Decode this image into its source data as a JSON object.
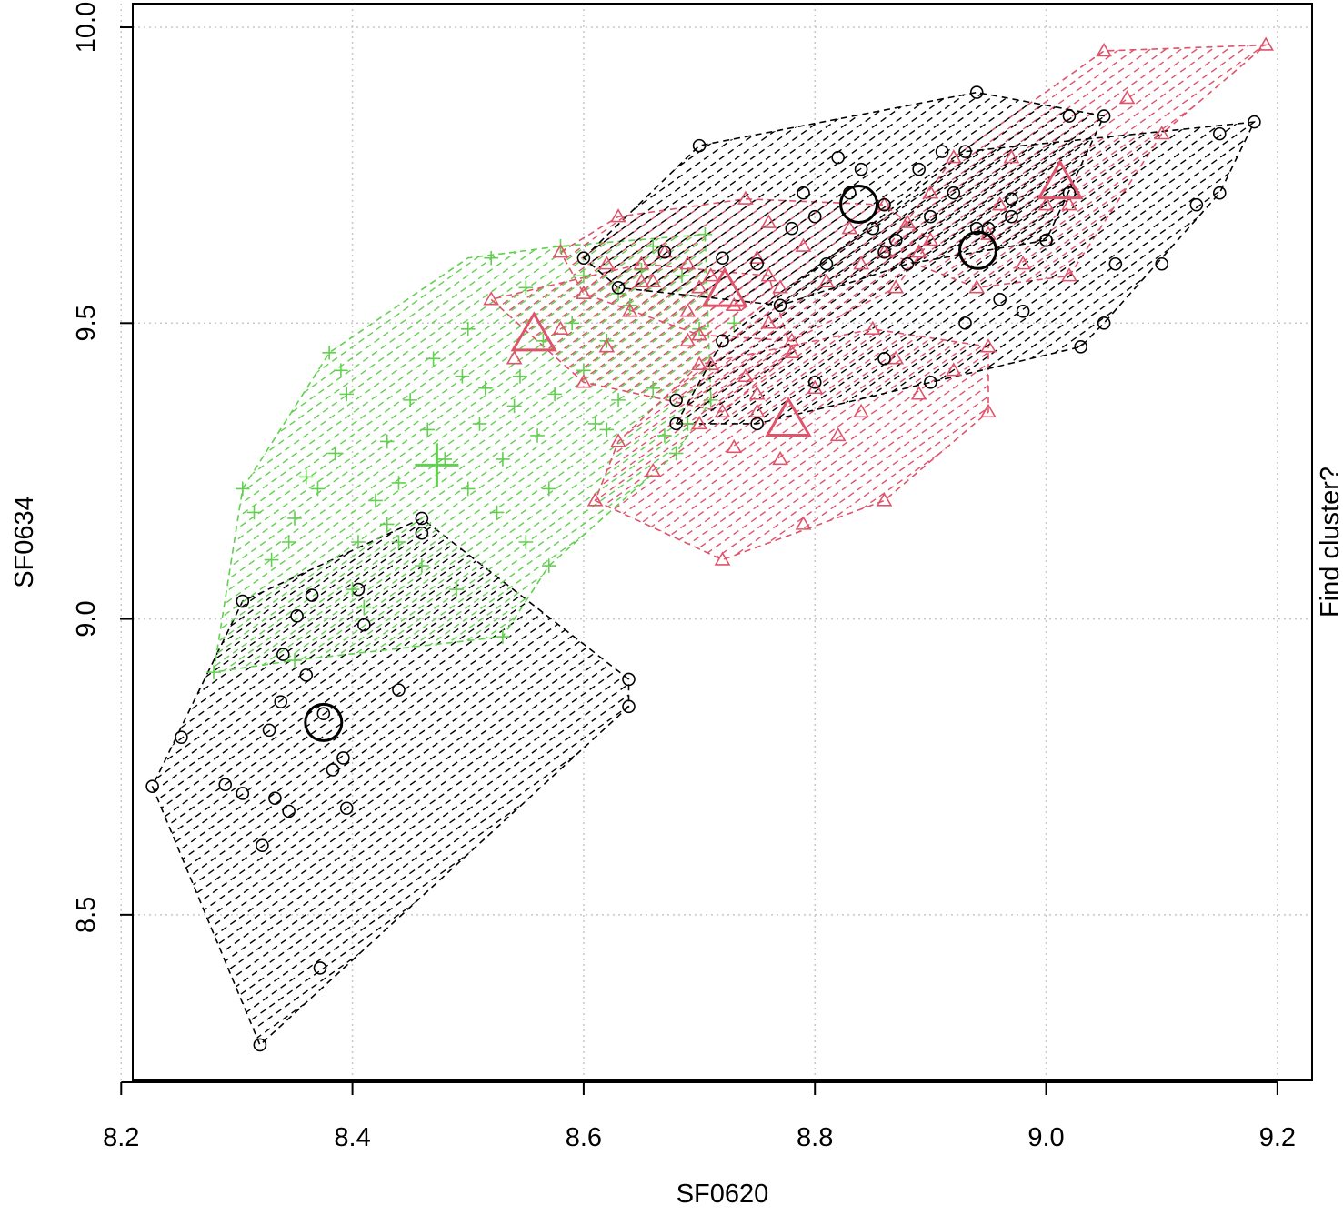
{
  "chart_data": {
    "type": "scatter",
    "title": "",
    "xlabel": "SF0620",
    "ylabel": "SF0634",
    "right_label": "Find cluster?",
    "xlim": [
      8.21,
      9.23
    ],
    "ylim": [
      8.22,
      10.04
    ],
    "x_ticks": [
      "8.2",
      "8.4",
      "8.6",
      "8.8",
      "9.0",
      "9.2"
    ],
    "y_ticks": [
      "8.5",
      "9.0",
      "9.5",
      "10.0"
    ],
    "grid": true,
    "legend": "none",
    "colors": {
      "black": "#000000",
      "pink": "#DF536B",
      "green": "#61D04F",
      "grid": "#c8c8c8"
    },
    "clusters": [
      {
        "color": "black",
        "marker": "circle",
        "center": [
          8.375,
          8.825
        ],
        "hull": [
          [
            8.227,
            8.717
          ],
          [
            8.32,
            8.28
          ],
          [
            8.639,
            8.852
          ],
          [
            8.639,
            8.898
          ],
          [
            8.46,
            9.17
          ],
          [
            8.305,
            9.03
          ],
          [
            8.227,
            8.717
          ]
        ],
        "points": [
          [
            8.227,
            8.717
          ],
          [
            8.252,
            8.8
          ],
          [
            8.29,
            8.72
          ],
          [
            8.305,
            8.705
          ],
          [
            8.322,
            8.617
          ],
          [
            8.32,
            8.28
          ],
          [
            8.328,
            8.812
          ],
          [
            8.333,
            8.697
          ],
          [
            8.338,
            8.86
          ],
          [
            8.345,
            8.675
          ],
          [
            8.352,
            9.005
          ],
          [
            8.36,
            8.905
          ],
          [
            8.365,
            9.04
          ],
          [
            8.372,
            8.41
          ],
          [
            8.383,
            8.745
          ],
          [
            8.392,
            8.765
          ],
          [
            8.395,
            8.68
          ],
          [
            8.405,
            9.05
          ],
          [
            8.41,
            8.99
          ],
          [
            8.44,
            8.88
          ],
          [
            8.46,
            9.145
          ],
          [
            8.46,
            9.17
          ],
          [
            8.639,
            8.852
          ],
          [
            8.639,
            8.898
          ],
          [
            8.34,
            8.94
          ],
          [
            8.305,
            9.03
          ],
          [
            8.375,
            8.84
          ]
        ]
      },
      {
        "color": "green",
        "marker": "plus",
        "center": [
          8.473,
          9.26
        ],
        "hull": [
          [
            8.28,
            8.91
          ],
          [
            8.305,
            9.22
          ],
          [
            8.38,
            9.45
          ],
          [
            8.5,
            9.61
          ],
          [
            8.58,
            9.63
          ],
          [
            8.705,
            9.65
          ],
          [
            8.71,
            9.37
          ],
          [
            8.68,
            9.28
          ],
          [
            8.57,
            9.09
          ],
          [
            8.53,
            8.97
          ],
          [
            8.35,
            8.93
          ],
          [
            8.28,
            8.91
          ]
        ],
        "points": [
          [
            8.28,
            8.91
          ],
          [
            8.305,
            9.22
          ],
          [
            8.315,
            9.18
          ],
          [
            8.33,
            9.1
          ],
          [
            8.345,
            9.13
          ],
          [
            8.35,
            9.17
          ],
          [
            8.36,
            9.24
          ],
          [
            8.37,
            9.22
          ],
          [
            8.38,
            9.45
          ],
          [
            8.385,
            9.28
          ],
          [
            8.39,
            9.42
          ],
          [
            8.395,
            9.38
          ],
          [
            8.4,
            9.05
          ],
          [
            8.405,
            9.13
          ],
          [
            8.41,
            9.02
          ],
          [
            8.42,
            9.2
          ],
          [
            8.43,
            9.16
          ],
          [
            8.43,
            9.3
          ],
          [
            8.44,
            9.23
          ],
          [
            8.45,
            9.37
          ],
          [
            8.46,
            9.09
          ],
          [
            8.465,
            9.32
          ],
          [
            8.47,
            9.44
          ],
          [
            8.48,
            9.27
          ],
          [
            8.49,
            9.05
          ],
          [
            8.495,
            9.41
          ],
          [
            8.5,
            9.22
          ],
          [
            8.51,
            9.33
          ],
          [
            8.515,
            9.39
          ],
          [
            8.52,
            9.61
          ],
          [
            8.525,
            9.18
          ],
          [
            8.53,
            9.27
          ],
          [
            8.54,
            9.36
          ],
          [
            8.545,
            9.41
          ],
          [
            8.55,
            9.13
          ],
          [
            8.56,
            9.31
          ],
          [
            8.565,
            9.47
          ],
          [
            8.57,
            9.22
          ],
          [
            8.575,
            9.38
          ],
          [
            8.58,
            9.63
          ],
          [
            8.59,
            9.5
          ],
          [
            8.6,
            9.42
          ],
          [
            8.61,
            9.33
          ],
          [
            8.62,
            9.47
          ],
          [
            8.63,
            9.37
          ],
          [
            8.64,
            9.53
          ],
          [
            8.65,
            9.59
          ],
          [
            8.66,
            9.39
          ],
          [
            8.67,
            9.31
          ],
          [
            8.68,
            9.28
          ],
          [
            8.69,
            9.33
          ],
          [
            8.7,
            9.49
          ],
          [
            8.705,
            9.65
          ],
          [
            8.71,
            9.37
          ],
          [
            8.57,
            9.09
          ],
          [
            8.53,
            8.97
          ],
          [
            8.35,
            8.93
          ],
          [
            8.44,
            9.13
          ],
          [
            8.5,
            9.49
          ],
          [
            8.55,
            9.56
          ],
          [
            8.6,
            9.58
          ],
          [
            8.62,
            9.32
          ],
          [
            8.63,
            9.55
          ],
          [
            8.66,
            9.63
          ],
          [
            8.685,
            9.58
          ],
          [
            8.73,
            9.5
          ]
        ]
      },
      {
        "color": "pink",
        "marker": "triangle",
        "center": [
          8.557,
          9.48
        ],
        "hull": [
          [
            8.52,
            9.54
          ],
          [
            8.6,
            9.4
          ],
          [
            8.72,
            9.35
          ],
          [
            8.78,
            9.45
          ],
          [
            8.76,
            9.58
          ],
          [
            8.65,
            9.6
          ],
          [
            8.52,
            9.54
          ]
        ],
        "points": [
          [
            8.52,
            9.54
          ],
          [
            8.54,
            9.44
          ],
          [
            8.58,
            9.49
          ],
          [
            8.6,
            9.4
          ],
          [
            8.62,
            9.46
          ],
          [
            8.64,
            9.52
          ],
          [
            8.66,
            9.57
          ],
          [
            8.69,
            9.47
          ],
          [
            8.71,
            9.43
          ],
          [
            8.72,
            9.35
          ],
          [
            8.74,
            9.41
          ],
          [
            8.76,
            9.5
          ],
          [
            8.78,
            9.45
          ],
          [
            8.76,
            9.58
          ],
          [
            8.7,
            9.56
          ],
          [
            8.65,
            9.6
          ]
        ]
      },
      {
        "color": "pink",
        "marker": "triangle",
        "center": [
          8.777,
          9.336
        ],
        "hull": [
          [
            8.61,
            9.2
          ],
          [
            8.72,
            9.1
          ],
          [
            8.86,
            9.2
          ],
          [
            8.95,
            9.35
          ],
          [
            8.95,
            9.46
          ],
          [
            8.85,
            9.49
          ],
          [
            8.7,
            9.43
          ],
          [
            8.63,
            9.3
          ],
          [
            8.61,
            9.2
          ]
        ],
        "points": [
          [
            8.61,
            9.2
          ],
          [
            8.63,
            9.3
          ],
          [
            8.66,
            9.25
          ],
          [
            8.7,
            9.33
          ],
          [
            8.7,
            9.43
          ],
          [
            8.72,
            9.1
          ],
          [
            8.73,
            9.29
          ],
          [
            8.75,
            9.38
          ],
          [
            8.77,
            9.27
          ],
          [
            8.79,
            9.16
          ],
          [
            8.8,
            9.39
          ],
          [
            8.82,
            9.31
          ],
          [
            8.84,
            9.35
          ],
          [
            8.86,
            9.2
          ],
          [
            8.87,
            9.44
          ],
          [
            8.89,
            9.38
          ],
          [
            8.92,
            9.42
          ],
          [
            8.95,
            9.35
          ],
          [
            8.95,
            9.46
          ],
          [
            8.85,
            9.49
          ],
          [
            8.75,
            9.35
          ]
        ]
      },
      {
        "color": "pink",
        "marker": "triangle",
        "center": [
          8.722,
          9.555
        ],
        "hull": [
          [
            8.58,
            9.62
          ],
          [
            8.63,
            9.68
          ],
          [
            8.74,
            9.71
          ],
          [
            8.86,
            9.7
          ],
          [
            8.9,
            9.64
          ],
          [
            8.87,
            9.56
          ],
          [
            8.78,
            9.47
          ],
          [
            8.7,
            9.48
          ],
          [
            8.6,
            9.55
          ],
          [
            8.58,
            9.62
          ]
        ],
        "points": [
          [
            8.58,
            9.62
          ],
          [
            8.6,
            9.55
          ],
          [
            8.62,
            9.6
          ],
          [
            8.63,
            9.68
          ],
          [
            8.65,
            9.57
          ],
          [
            8.67,
            9.62
          ],
          [
            8.69,
            9.52
          ],
          [
            8.7,
            9.48
          ],
          [
            8.71,
            9.58
          ],
          [
            8.73,
            9.53
          ],
          [
            8.74,
            9.71
          ],
          [
            8.75,
            9.61
          ],
          [
            8.77,
            9.56
          ],
          [
            8.78,
            9.47
          ],
          [
            8.79,
            9.63
          ],
          [
            8.81,
            9.57
          ],
          [
            8.83,
            9.66
          ],
          [
            8.84,
            9.6
          ],
          [
            8.86,
            9.7
          ],
          [
            8.87,
            9.56
          ],
          [
            8.89,
            9.62
          ],
          [
            8.9,
            9.64
          ],
          [
            8.76,
            9.67
          ],
          [
            8.69,
            9.6
          ]
        ]
      },
      {
        "color": "pink",
        "marker": "triangle",
        "center": [
          9.012,
          9.737
        ],
        "hull": [
          [
            8.86,
            9.62
          ],
          [
            8.92,
            9.78
          ],
          [
            9.05,
            9.96
          ],
          [
            9.19,
            9.97
          ],
          [
            9.1,
            9.82
          ],
          [
            9.02,
            9.58
          ],
          [
            8.94,
            9.56
          ],
          [
            8.86,
            9.62
          ]
        ],
        "points": [
          [
            8.86,
            9.62
          ],
          [
            8.88,
            9.67
          ],
          [
            8.9,
            9.72
          ],
          [
            8.92,
            9.78
          ],
          [
            8.94,
            9.56
          ],
          [
            8.95,
            9.65
          ],
          [
            8.97,
            9.78
          ],
          [
            8.98,
            9.6
          ],
          [
            9.0,
            9.7
          ],
          [
            9.02,
            9.58
          ],
          [
            9.02,
            9.7
          ],
          [
            9.05,
            9.96
          ],
          [
            9.07,
            9.88
          ],
          [
            9.1,
            9.82
          ],
          [
            9.19,
            9.97
          ],
          [
            8.96,
            9.7
          ]
        ]
      },
      {
        "color": "black",
        "marker": "circle",
        "center": [
          8.838,
          9.701
        ],
        "hull": [
          [
            8.6,
            9.61
          ],
          [
            8.7,
            9.8
          ],
          [
            8.94,
            9.89
          ],
          [
            9.05,
            9.85
          ],
          [
            9.0,
            9.64
          ],
          [
            8.88,
            9.6
          ],
          [
            8.77,
            9.53
          ],
          [
            8.63,
            9.56
          ],
          [
            8.6,
            9.61
          ]
        ],
        "points": [
          [
            8.6,
            9.61
          ],
          [
            8.63,
            9.56
          ],
          [
            8.67,
            9.62
          ],
          [
            8.7,
            9.8
          ],
          [
            8.72,
            9.61
          ],
          [
            8.75,
            9.6
          ],
          [
            8.77,
            9.53
          ],
          [
            8.78,
            9.66
          ],
          [
            8.79,
            9.72
          ],
          [
            8.81,
            9.6
          ],
          [
            8.82,
            9.78
          ],
          [
            8.83,
            9.72
          ],
          [
            8.84,
            9.76
          ],
          [
            8.85,
            9.66
          ],
          [
            8.86,
            9.7
          ],
          [
            8.87,
            9.64
          ],
          [
            8.88,
            9.6
          ],
          [
            8.89,
            9.76
          ],
          [
            8.9,
            9.68
          ],
          [
            8.91,
            9.79
          ],
          [
            8.92,
            9.72
          ],
          [
            8.94,
            9.89
          ],
          [
            8.95,
            9.66
          ],
          [
            8.97,
            9.71
          ],
          [
            9.0,
            9.64
          ],
          [
            9.02,
            9.85
          ],
          [
            9.05,
            9.85
          ],
          [
            8.8,
            9.68
          ],
          [
            8.86,
            9.62
          ]
        ]
      },
      {
        "color": "black",
        "marker": "circle",
        "center": [
          8.941,
          9.623
        ],
        "hull": [
          [
            8.68,
            9.33
          ],
          [
            8.72,
            9.47
          ],
          [
            8.93,
            9.79
          ],
          [
            9.18,
            9.84
          ],
          [
            9.15,
            9.72
          ],
          [
            9.05,
            9.5
          ],
          [
            9.03,
            9.46
          ],
          [
            8.9,
            9.4
          ],
          [
            8.75,
            9.33
          ],
          [
            8.68,
            9.33
          ]
        ],
        "points": [
          [
            8.68,
            9.33
          ],
          [
            8.68,
            9.37
          ],
          [
            8.72,
            9.47
          ],
          [
            8.75,
            9.33
          ],
          [
            8.8,
            9.4
          ],
          [
            8.86,
            9.44
          ],
          [
            8.9,
            9.4
          ],
          [
            8.93,
            9.5
          ],
          [
            8.93,
            9.79
          ],
          [
            8.94,
            9.66
          ],
          [
            8.96,
            9.54
          ],
          [
            8.98,
            9.52
          ],
          [
            9.0,
            9.64
          ],
          [
            9.03,
            9.46
          ],
          [
            9.05,
            9.5
          ],
          [
            9.06,
            9.6
          ],
          [
            9.1,
            9.6
          ],
          [
            9.13,
            9.7
          ],
          [
            9.15,
            9.72
          ],
          [
            9.15,
            9.82
          ],
          [
            9.18,
            9.84
          ],
          [
            9.02,
            9.72
          ],
          [
            8.97,
            9.68
          ]
        ]
      }
    ]
  }
}
